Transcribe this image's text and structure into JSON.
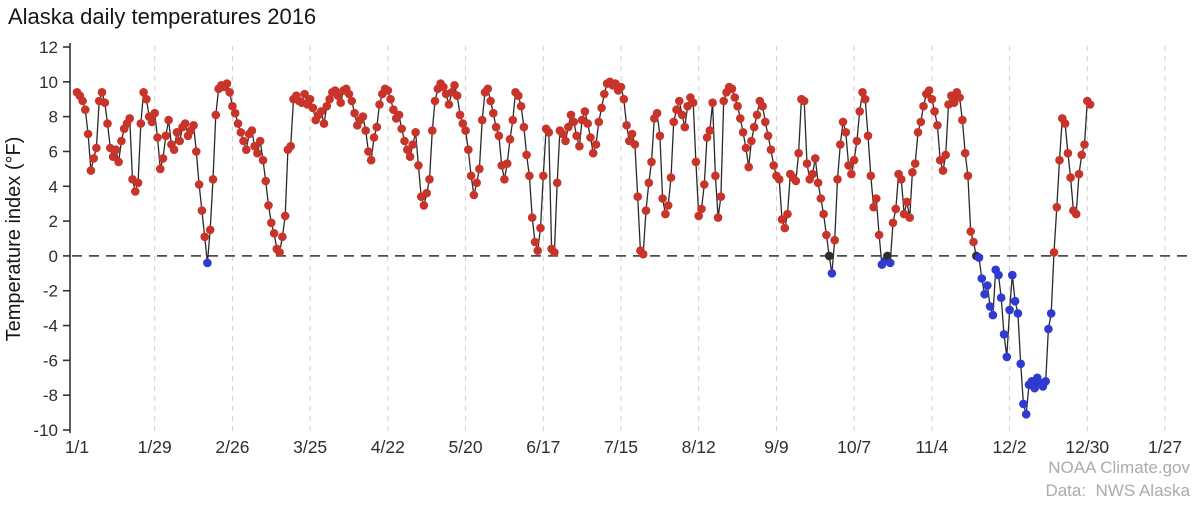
{
  "page": {
    "background": "#ffffff"
  },
  "footer": {
    "source": "NOAA Climate.gov",
    "credit": "Data:  NWS Alaska"
  },
  "chart_data": {
    "type": "line",
    "title": "Alaska daily temperatures 2016",
    "xlabel": "",
    "ylabel": "Temperature index (°F)",
    "ylim": [
      -10,
      12
    ],
    "ytick_values": [
      12,
      10,
      8,
      6,
      4,
      2,
      0,
      -2,
      -4,
      -6,
      -8,
      -10
    ],
    "x_tick_labels": [
      "1/1",
      "1/29",
      "2/26",
      "3/25",
      "4/22",
      "5/20",
      "6/17",
      "7/15",
      "8/12",
      "9/9",
      "10/7",
      "11/4",
      "12/2",
      "12/30",
      "1/27"
    ],
    "x_tick_days": [
      1,
      29,
      57,
      85,
      113,
      141,
      169,
      197,
      225,
      253,
      281,
      309,
      337,
      365,
      393
    ],
    "x_domain": [
      1,
      393
    ],
    "grid": "vertical-dashed",
    "legend_position": "none",
    "zero_reference_line": 0,
    "point_color_rule": {
      "positive": "red",
      "negative": "blue",
      "zero": "black"
    },
    "colors": {
      "positive": "#c9342a",
      "negative": "#2f3ad0",
      "zero": "#2e2e2e",
      "line": "#2a2a2a",
      "zero_line": "#4d4d4d",
      "grid": "#cfcfcf",
      "axis": "#333333"
    },
    "series": [
      {
        "name": "Daily temperature index",
        "start_label": "1/1",
        "values": [
          9.4,
          9.2,
          8.9,
          8.4,
          7.0,
          4.9,
          5.6,
          6.2,
          8.9,
          9.4,
          8.8,
          7.6,
          6.2,
          5.7,
          6.1,
          5.4,
          6.6,
          7.3,
          7.6,
          7.9,
          4.4,
          3.7,
          4.2,
          7.6,
          9.4,
          9.0,
          8.0,
          7.7,
          8.2,
          6.8,
          5.0,
          5.6,
          6.9,
          7.8,
          6.4,
          6.1,
          7.1,
          6.6,
          7.4,
          7.6,
          6.9,
          7.2,
          7.5,
          6.0,
          4.1,
          2.6,
          1.1,
          -0.4,
          1.5,
          4.4,
          8.1,
          9.6,
          9.8,
          9.7,
          9.9,
          9.4,
          8.6,
          8.2,
          7.6,
          7.1,
          6.6,
          6.1,
          7.0,
          7.2,
          6.3,
          5.9,
          6.6,
          5.5,
          4.3,
          2.9,
          1.9,
          1.3,
          0.4,
          0.2,
          1.1,
          2.3,
          6.1,
          6.3,
          9.0,
          9.2,
          8.9,
          8.8,
          9.3,
          8.7,
          9.0,
          8.5,
          7.8,
          8.1,
          8.3,
          7.6,
          8.6,
          9.0,
          9.4,
          9.5,
          9.2,
          8.8,
          9.5,
          9.6,
          9.3,
          8.9,
          8.2,
          7.5,
          7.8,
          8.0,
          7.2,
          6.0,
          5.5,
          6.8,
          7.4,
          8.7,
          9.3,
          9.6,
          9.5,
          9.0,
          8.4,
          7.9,
          8.1,
          7.3,
          6.6,
          6.1,
          5.7,
          6.4,
          7.1,
          5.2,
          3.4,
          2.9,
          3.6,
          4.4,
          7.2,
          8.9,
          9.6,
          9.9,
          9.7,
          9.3,
          8.7,
          9.4,
          9.8,
          9.2,
          8.1,
          7.6,
          7.2,
          6.1,
          4.6,
          3.5,
          4.2,
          5.0,
          7.8,
          9.4,
          9.6,
          8.9,
          8.2,
          7.4,
          6.9,
          5.2,
          4.4,
          5.3,
          6.7,
          7.8,
          9.4,
          9.2,
          8.6,
          7.4,
          5.8,
          4.6,
          2.2,
          0.8,
          0.3,
          1.6,
          4.6,
          7.3,
          7.1,
          0.4,
          0.2,
          4.2,
          7.2,
          7.0,
          6.6,
          7.4,
          8.1,
          7.7,
          6.9,
          6.3,
          7.8,
          8.3,
          7.6,
          6.8,
          5.9,
          6.4,
          7.7,
          8.5,
          9.3,
          9.9,
          10.0,
          9.8,
          9.9,
          9.5,
          9.7,
          9.0,
          7.5,
          6.6,
          7.0,
          6.4,
          3.4,
          0.3,
          0.1,
          2.6,
          4.2,
          5.4,
          7.9,
          8.2,
          6.9,
          3.3,
          2.4,
          2.9,
          4.5,
          7.7,
          8.4,
          8.9,
          8.1,
          7.4,
          8.6,
          9.1,
          8.8,
          5.4,
          2.3,
          2.7,
          4.1,
          6.8,
          7.2,
          8.8,
          4.6,
          2.2,
          3.4,
          8.9,
          9.4,
          9.7,
          9.6,
          9.1,
          8.6,
          7.9,
          7.1,
          6.2,
          5.1,
          6.6,
          7.4,
          8.1,
          8.9,
          8.6,
          7.7,
          6.9,
          6.1,
          5.2,
          4.6,
          4.4,
          2.1,
          1.6,
          2.4,
          4.7,
          4.5,
          4.3,
          5.9,
          9.0,
          8.9,
          5.3,
          4.4,
          4.7,
          5.6,
          4.2,
          3.3,
          2.4,
          1.2,
          0.0,
          -1.0,
          0.9,
          4.4,
          6.4,
          7.7,
          7.1,
          5.2,
          4.7,
          5.5,
          6.6,
          8.3,
          9.4,
          9.0,
          6.9,
          4.6,
          2.8,
          3.3,
          1.2,
          -0.5,
          -0.3,
          0.0,
          -0.4,
          1.9,
          2.7,
          4.7,
          4.4,
          2.4,
          3.1,
          2.2,
          4.8,
          5.3,
          7.1,
          7.7,
          8.6,
          9.3,
          9.5,
          9.0,
          8.3,
          7.5,
          5.5,
          4.9,
          5.8,
          8.7,
          9.2,
          8.8,
          9.4,
          9.1,
          7.8,
          5.9,
          4.6,
          1.4,
          0.8,
          0.0,
          -0.1,
          -1.3,
          -2.2,
          -1.7,
          -2.9,
          -3.4,
          -0.8,
          -1.1,
          -2.4,
          -4.5,
          -5.8,
          -3.1,
          -1.1,
          -2.6,
          -3.3,
          -6.2,
          -8.5,
          -9.1,
          -7.4,
          -7.2,
          -7.6,
          -7.0,
          -7.3,
          -7.5,
          -7.2,
          -4.2,
          -3.3,
          0.2,
          2.8,
          5.5,
          7.9,
          7.6,
          5.9,
          4.5,
          2.6,
          2.4,
          4.7,
          5.8,
          6.4,
          8.9,
          8.7
        ]
      }
    ]
  }
}
